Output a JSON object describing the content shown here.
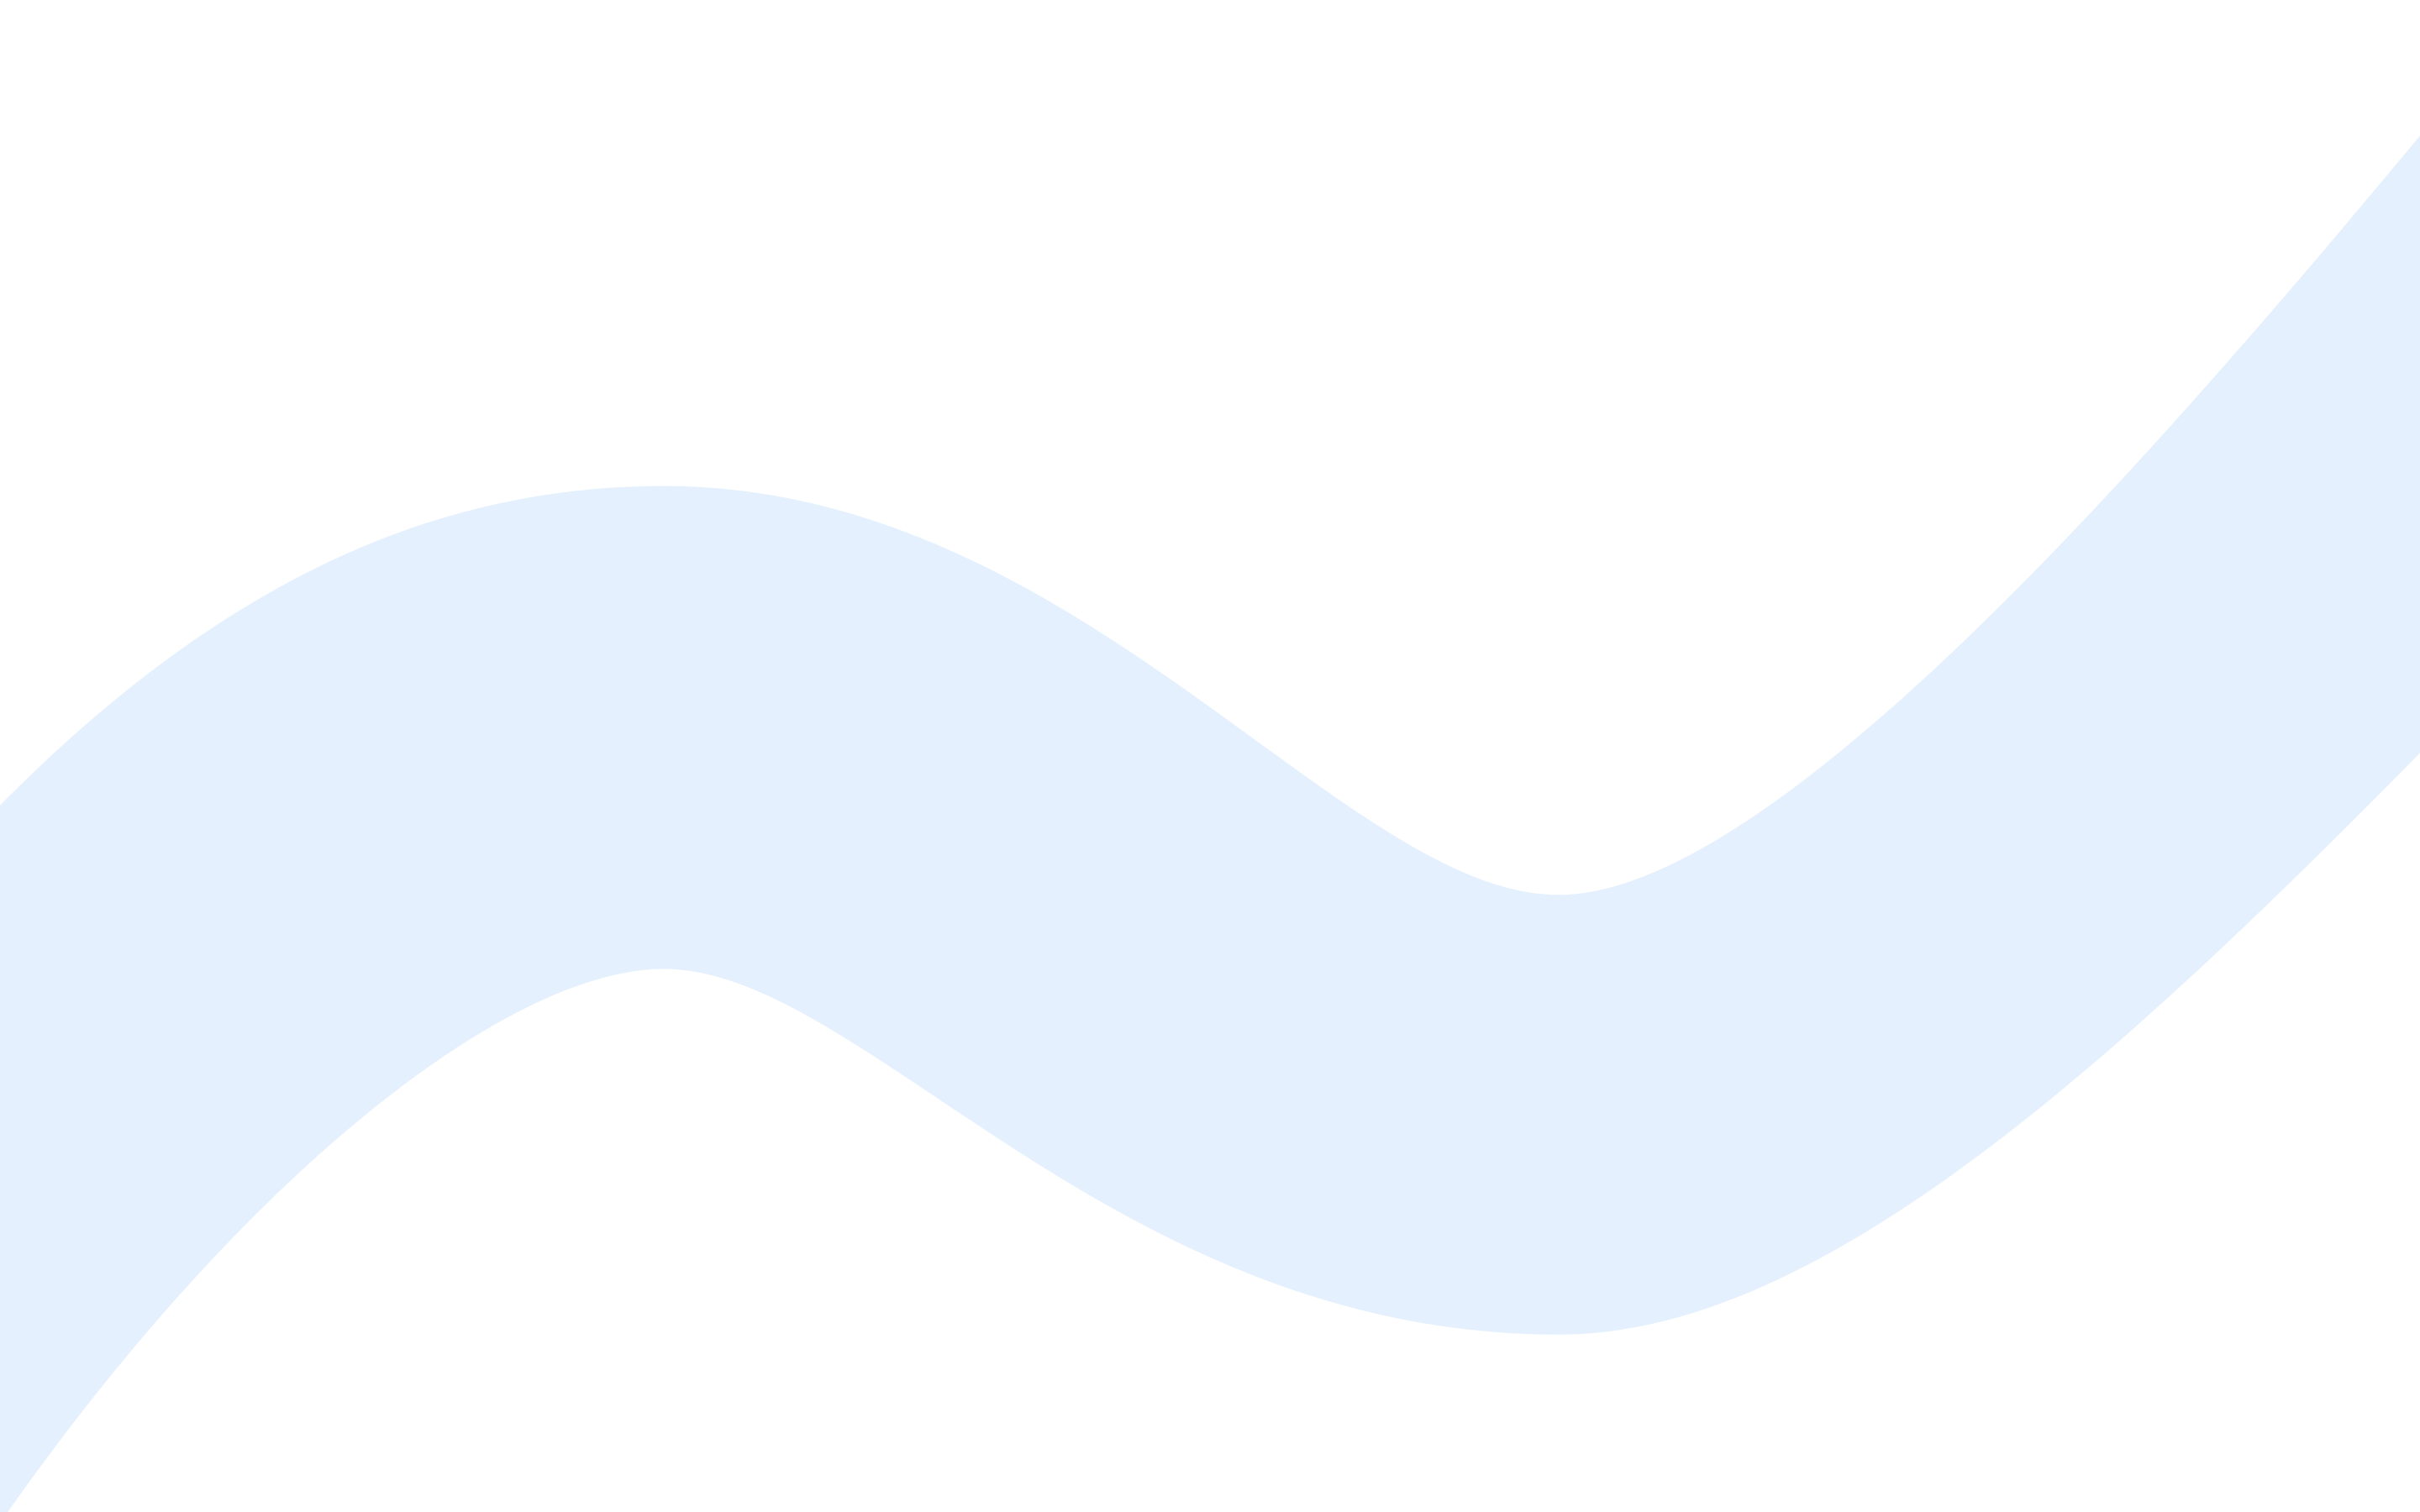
{
  "background": {
    "colors": {
      "page": "#ffffff",
      "wave": "#e4f0fd"
    },
    "decoration": "wave-band"
  }
}
